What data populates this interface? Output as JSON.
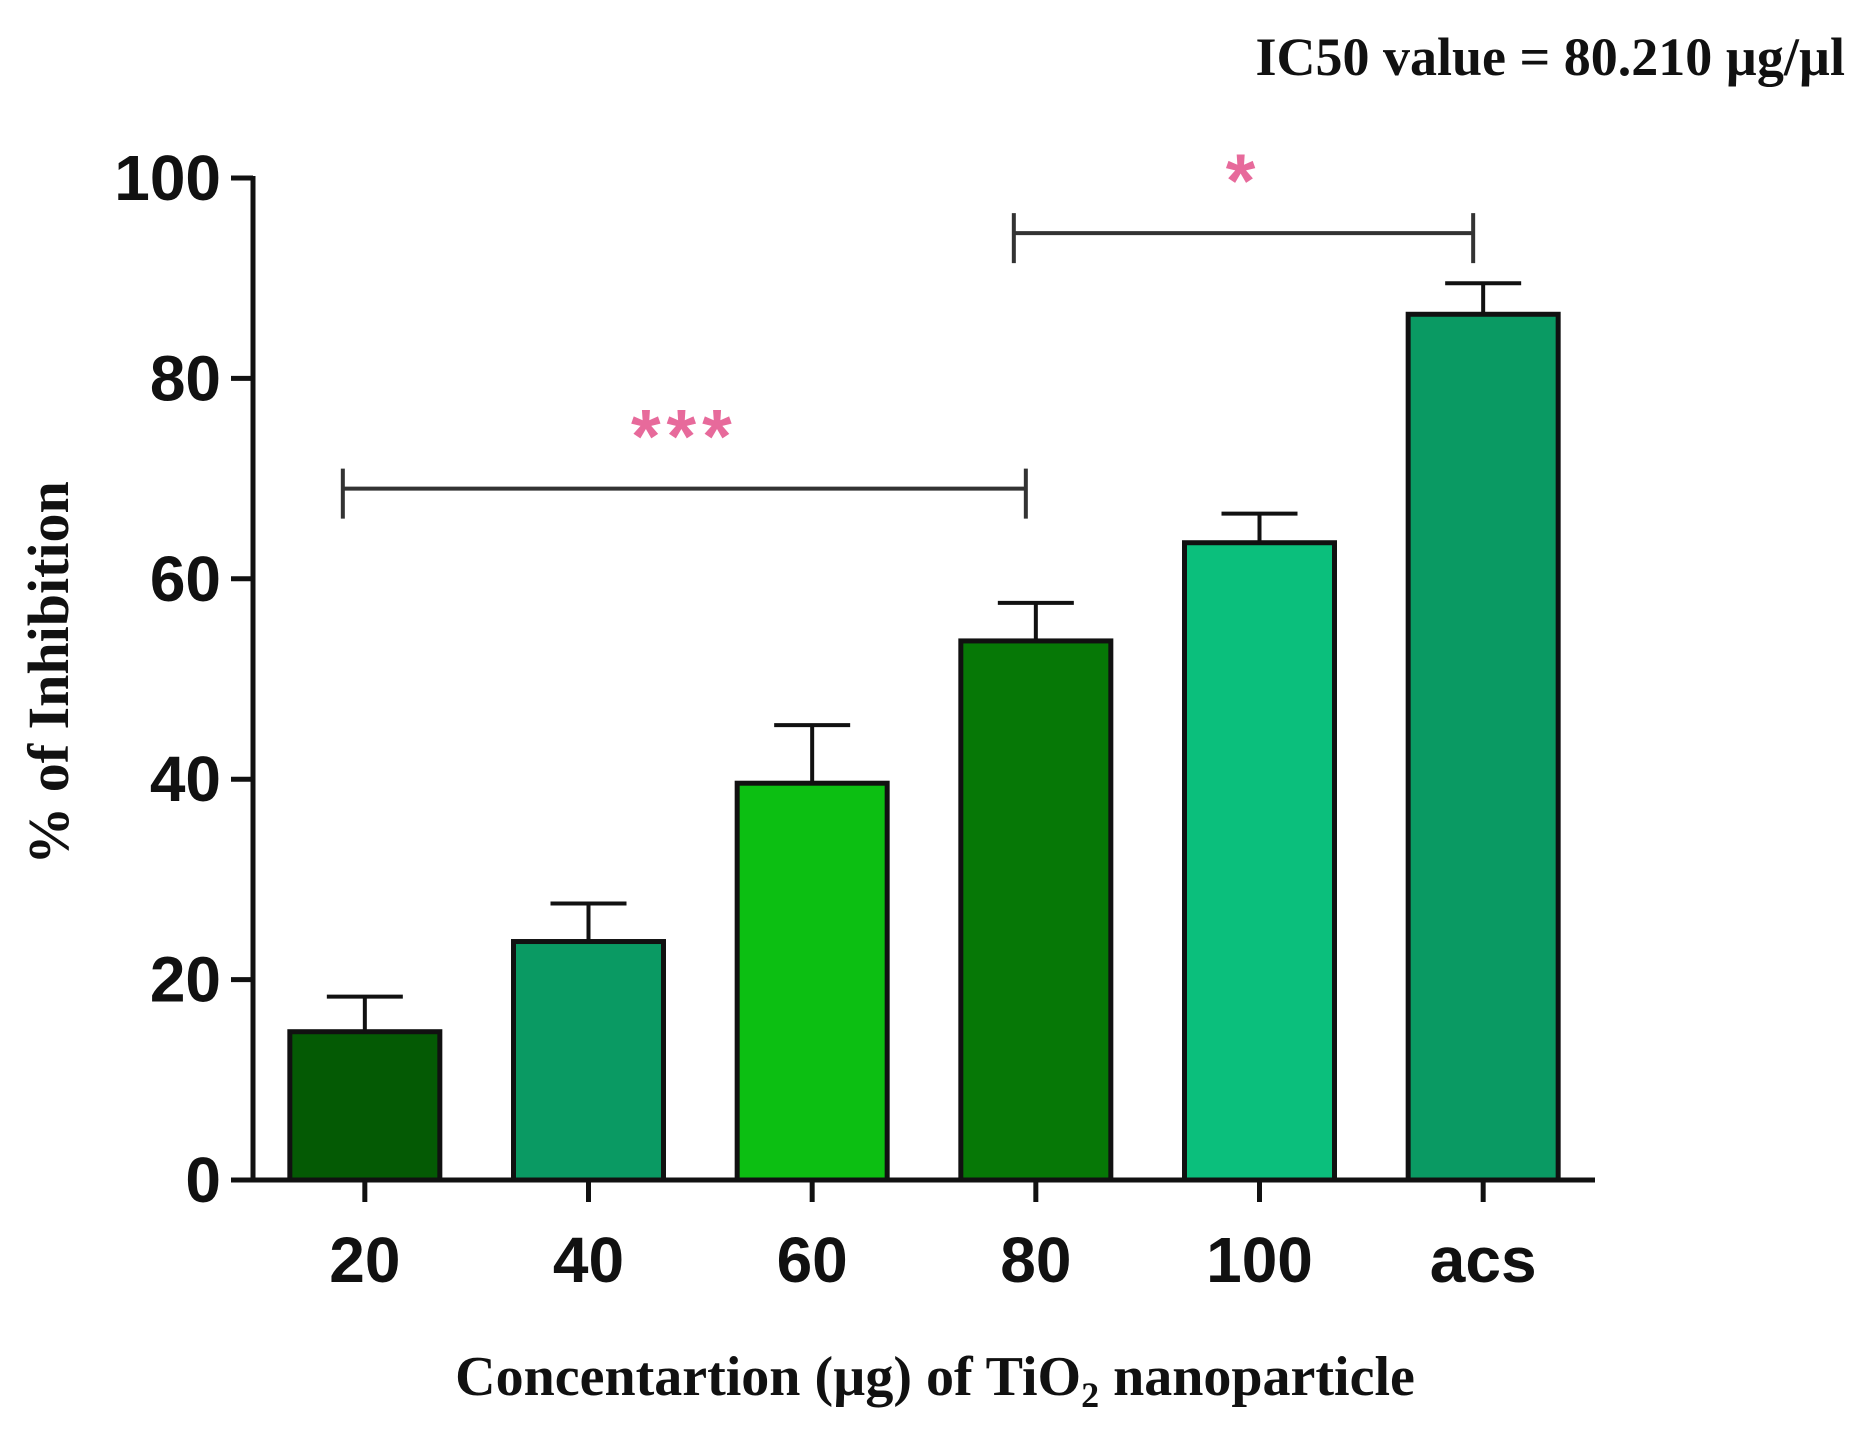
{
  "chart_data": {
    "type": "bar",
    "title": "IC50 value = 80.210 µg/µl",
    "xlabel_parts": {
      "before": "Concentartion (µg) of TiO",
      "subscript": "2",
      "after": " nanoparticle"
    },
    "ylabel": "% of Inhibition",
    "categories": [
      "20",
      "40",
      "60",
      "80",
      "100",
      "acs"
    ],
    "values": [
      14.8,
      23.8,
      39.6,
      53.8,
      63.6,
      86.4
    ],
    "errors": [
      3.5,
      3.8,
      5.8,
      3.8,
      2.9,
      3.1
    ],
    "colors": [
      "#045a04",
      "#0a9a63",
      "#0cbf12",
      "#067806",
      "#0bbf7c",
      "#0a9a63"
    ],
    "ylim": [
      0,
      100
    ],
    "yticks": [
      0,
      20,
      40,
      60,
      80,
      100
    ],
    "ytick_labels": [
      "0",
      "20",
      "40",
      "60",
      "80",
      "100"
    ],
    "significance": [
      {
        "from": "20",
        "to": "80",
        "label": "***",
        "y": 69,
        "color": "#e76a9b"
      },
      {
        "from": "80",
        "to": "acs",
        "label": "*",
        "y": 94.5,
        "color": "#e76a9b"
      }
    ]
  }
}
